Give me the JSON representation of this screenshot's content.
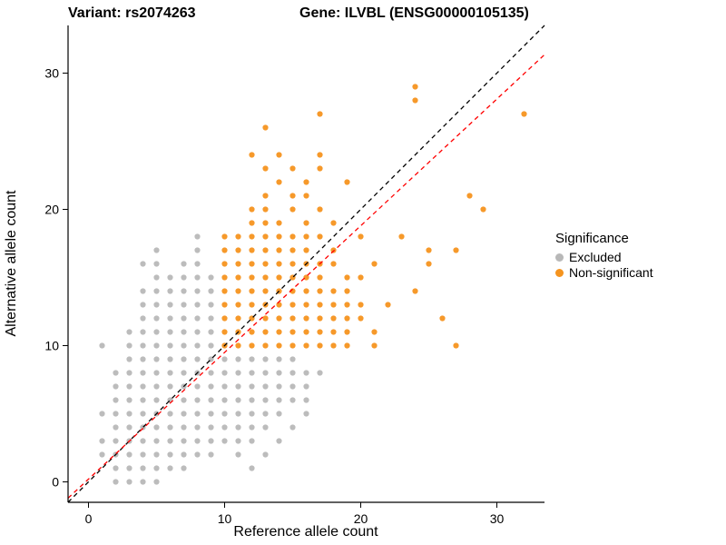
{
  "chart_data": {
    "type": "scatter",
    "title_left": "Variant: rs2074263",
    "title_right": "Gene: ILVBL (ENSG00000105135)",
    "xlabel": "Reference allele count",
    "ylabel": "Alternative allele count",
    "xlim": [
      -1.5,
      33.5
    ],
    "ylim": [
      -1.5,
      33.5
    ],
    "xticks": [
      0,
      10,
      20,
      30
    ],
    "yticks": [
      0,
      10,
      20,
      30
    ],
    "legend_title": "Significance",
    "series": [
      {
        "name": "Excluded",
        "color": "#B8B8B8",
        "points": [
          [
            2,
            0
          ],
          [
            3,
            0
          ],
          [
            4,
            0
          ],
          [
            5,
            0
          ],
          [
            2,
            1
          ],
          [
            3,
            1
          ],
          [
            4,
            1
          ],
          [
            5,
            1
          ],
          [
            6,
            1
          ],
          [
            7,
            1
          ],
          [
            12,
            1
          ],
          [
            1,
            2
          ],
          [
            2,
            2
          ],
          [
            3,
            2
          ],
          [
            4,
            2
          ],
          [
            5,
            2
          ],
          [
            6,
            2
          ],
          [
            7,
            2
          ],
          [
            8,
            2
          ],
          [
            9,
            2
          ],
          [
            11,
            2
          ],
          [
            13,
            2
          ],
          [
            1,
            3
          ],
          [
            2,
            3
          ],
          [
            3,
            3
          ],
          [
            4,
            3
          ],
          [
            5,
            3
          ],
          [
            6,
            3
          ],
          [
            7,
            3
          ],
          [
            8,
            3
          ],
          [
            9,
            3
          ],
          [
            10,
            3
          ],
          [
            11,
            3
          ],
          [
            12,
            3
          ],
          [
            14,
            3
          ],
          [
            2,
            4
          ],
          [
            3,
            4
          ],
          [
            4,
            4
          ],
          [
            5,
            4
          ],
          [
            6,
            4
          ],
          [
            7,
            4
          ],
          [
            8,
            4
          ],
          [
            9,
            4
          ],
          [
            10,
            4
          ],
          [
            11,
            4
          ],
          [
            12,
            4
          ],
          [
            13,
            4
          ],
          [
            15,
            4
          ],
          [
            1,
            5
          ],
          [
            2,
            5
          ],
          [
            3,
            5
          ],
          [
            4,
            5
          ],
          [
            5,
            5
          ],
          [
            6,
            5
          ],
          [
            7,
            5
          ],
          [
            8,
            5
          ],
          [
            9,
            5
          ],
          [
            10,
            5
          ],
          [
            11,
            5
          ],
          [
            12,
            5
          ],
          [
            13,
            5
          ],
          [
            14,
            5
          ],
          [
            16,
            5
          ],
          [
            2,
            6
          ],
          [
            3,
            6
          ],
          [
            4,
            6
          ],
          [
            5,
            6
          ],
          [
            6,
            6
          ],
          [
            7,
            6
          ],
          [
            8,
            6
          ],
          [
            9,
            6
          ],
          [
            10,
            6
          ],
          [
            11,
            6
          ],
          [
            12,
            6
          ],
          [
            13,
            6
          ],
          [
            14,
            6
          ],
          [
            15,
            6
          ],
          [
            16,
            6
          ],
          [
            2,
            7
          ],
          [
            3,
            7
          ],
          [
            4,
            7
          ],
          [
            5,
            7
          ],
          [
            6,
            7
          ],
          [
            7,
            7
          ],
          [
            8,
            7
          ],
          [
            9,
            7
          ],
          [
            10,
            7
          ],
          [
            11,
            7
          ],
          [
            12,
            7
          ],
          [
            13,
            7
          ],
          [
            14,
            7
          ],
          [
            15,
            7
          ],
          [
            16,
            7
          ],
          [
            2,
            8
          ],
          [
            3,
            8
          ],
          [
            4,
            8
          ],
          [
            5,
            8
          ],
          [
            6,
            8
          ],
          [
            7,
            8
          ],
          [
            8,
            8
          ],
          [
            9,
            8
          ],
          [
            10,
            8
          ],
          [
            11,
            8
          ],
          [
            12,
            8
          ],
          [
            13,
            8
          ],
          [
            14,
            8
          ],
          [
            15,
            8
          ],
          [
            16,
            8
          ],
          [
            17,
            8
          ],
          [
            3,
            9
          ],
          [
            4,
            9
          ],
          [
            5,
            9
          ],
          [
            6,
            9
          ],
          [
            7,
            9
          ],
          [
            8,
            9
          ],
          [
            9,
            9
          ],
          [
            10,
            9
          ],
          [
            11,
            9
          ],
          [
            12,
            9
          ],
          [
            13,
            9
          ],
          [
            14,
            9
          ],
          [
            15,
            9
          ],
          [
            1,
            10
          ],
          [
            3,
            10
          ],
          [
            4,
            10
          ],
          [
            5,
            10
          ],
          [
            6,
            10
          ],
          [
            7,
            10
          ],
          [
            8,
            10
          ],
          [
            9,
            10
          ],
          [
            3,
            11
          ],
          [
            4,
            11
          ],
          [
            5,
            11
          ],
          [
            6,
            11
          ],
          [
            7,
            11
          ],
          [
            8,
            11
          ],
          [
            9,
            11
          ],
          [
            4,
            12
          ],
          [
            5,
            12
          ],
          [
            6,
            12
          ],
          [
            7,
            12
          ],
          [
            8,
            12
          ],
          [
            9,
            12
          ],
          [
            4,
            13
          ],
          [
            5,
            13
          ],
          [
            6,
            13
          ],
          [
            7,
            13
          ],
          [
            8,
            13
          ],
          [
            9,
            13
          ],
          [
            4,
            14
          ],
          [
            5,
            14
          ],
          [
            6,
            14
          ],
          [
            7,
            14
          ],
          [
            8,
            14
          ],
          [
            9,
            14
          ],
          [
            5,
            15
          ],
          [
            6,
            15
          ],
          [
            7,
            15
          ],
          [
            8,
            15
          ],
          [
            9,
            15
          ],
          [
            4,
            16
          ],
          [
            5,
            16
          ],
          [
            7,
            16
          ],
          [
            8,
            16
          ],
          [
            5,
            17
          ],
          [
            8,
            17
          ],
          [
            8,
            18
          ]
        ]
      },
      {
        "name": "Non-significant",
        "color": "#F5941F",
        "points": [
          [
            10,
            10
          ],
          [
            11,
            10
          ],
          [
            12,
            10
          ],
          [
            13,
            10
          ],
          [
            14,
            10
          ],
          [
            15,
            10
          ],
          [
            16,
            10
          ],
          [
            17,
            10
          ],
          [
            18,
            10
          ],
          [
            19,
            10
          ],
          [
            21,
            10
          ],
          [
            27,
            10
          ],
          [
            10,
            11
          ],
          [
            11,
            11
          ],
          [
            12,
            11
          ],
          [
            13,
            11
          ],
          [
            14,
            11
          ],
          [
            15,
            11
          ],
          [
            16,
            11
          ],
          [
            17,
            11
          ],
          [
            18,
            11
          ],
          [
            19,
            11
          ],
          [
            21,
            11
          ],
          [
            10,
            12
          ],
          [
            11,
            12
          ],
          [
            12,
            12
          ],
          [
            13,
            12
          ],
          [
            14,
            12
          ],
          [
            15,
            12
          ],
          [
            16,
            12
          ],
          [
            17,
            12
          ],
          [
            18,
            12
          ],
          [
            19,
            12
          ],
          [
            20,
            12
          ],
          [
            26,
            12
          ],
          [
            10,
            13
          ],
          [
            11,
            13
          ],
          [
            12,
            13
          ],
          [
            13,
            13
          ],
          [
            14,
            13
          ],
          [
            15,
            13
          ],
          [
            16,
            13
          ],
          [
            17,
            13
          ],
          [
            18,
            13
          ],
          [
            19,
            13
          ],
          [
            20,
            13
          ],
          [
            22,
            13
          ],
          [
            10,
            14
          ],
          [
            11,
            14
          ],
          [
            12,
            14
          ],
          [
            13,
            14
          ],
          [
            14,
            14
          ],
          [
            15,
            14
          ],
          [
            16,
            14
          ],
          [
            17,
            14
          ],
          [
            18,
            14
          ],
          [
            19,
            14
          ],
          [
            24,
            14
          ],
          [
            10,
            15
          ],
          [
            11,
            15
          ],
          [
            12,
            15
          ],
          [
            13,
            15
          ],
          [
            14,
            15
          ],
          [
            15,
            15
          ],
          [
            16,
            15
          ],
          [
            17,
            15
          ],
          [
            19,
            15
          ],
          [
            20,
            15
          ],
          [
            10,
            16
          ],
          [
            11,
            16
          ],
          [
            12,
            16
          ],
          [
            13,
            16
          ],
          [
            14,
            16
          ],
          [
            15,
            16
          ],
          [
            16,
            16
          ],
          [
            17,
            16
          ],
          [
            18,
            16
          ],
          [
            21,
            16
          ],
          [
            25,
            16
          ],
          [
            10,
            17
          ],
          [
            11,
            17
          ],
          [
            12,
            17
          ],
          [
            13,
            17
          ],
          [
            14,
            17
          ],
          [
            15,
            17
          ],
          [
            16,
            17
          ],
          [
            18,
            17
          ],
          [
            25,
            17
          ],
          [
            27,
            17
          ],
          [
            10,
            18
          ],
          [
            11,
            18
          ],
          [
            12,
            18
          ],
          [
            13,
            18
          ],
          [
            14,
            18
          ],
          [
            15,
            18
          ],
          [
            16,
            18
          ],
          [
            17,
            18
          ],
          [
            20,
            18
          ],
          [
            23,
            18
          ],
          [
            12,
            19
          ],
          [
            13,
            19
          ],
          [
            14,
            19
          ],
          [
            16,
            19
          ],
          [
            18,
            19
          ],
          [
            12,
            20
          ],
          [
            13,
            20
          ],
          [
            15,
            20
          ],
          [
            17,
            20
          ],
          [
            29,
            20
          ],
          [
            13,
            21
          ],
          [
            15,
            21
          ],
          [
            16,
            21
          ],
          [
            28,
            21
          ],
          [
            14,
            22
          ],
          [
            16,
            22
          ],
          [
            19,
            22
          ],
          [
            13,
            23
          ],
          [
            15,
            23
          ],
          [
            17,
            23
          ],
          [
            12,
            24
          ],
          [
            14,
            24
          ],
          [
            17,
            24
          ],
          [
            13,
            26
          ],
          [
            17,
            27
          ],
          [
            32,
            27
          ],
          [
            24,
            28
          ],
          [
            24,
            29
          ]
        ]
      }
    ],
    "lines": [
      {
        "name": "identity-line",
        "slope": 1,
        "intercept": 0,
        "color": "#000000"
      },
      {
        "name": "fit-line",
        "slope": 0.93,
        "intercept": 0.2,
        "color": "#FF0000"
      }
    ]
  }
}
